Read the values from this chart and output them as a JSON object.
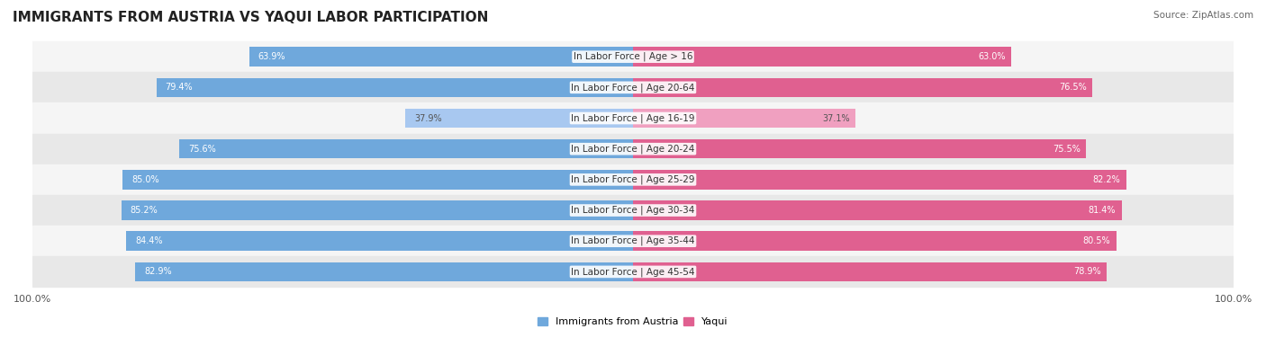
{
  "title": "IMMIGRANTS FROM AUSTRIA VS YAQUI LABOR PARTICIPATION",
  "source": "Source: ZipAtlas.com",
  "categories": [
    "In Labor Force | Age > 16",
    "In Labor Force | Age 20-64",
    "In Labor Force | Age 16-19",
    "In Labor Force | Age 20-24",
    "In Labor Force | Age 25-29",
    "In Labor Force | Age 30-34",
    "In Labor Force | Age 35-44",
    "In Labor Force | Age 45-54"
  ],
  "austria_values": [
    63.9,
    79.4,
    37.9,
    75.6,
    85.0,
    85.2,
    84.4,
    82.9
  ],
  "yaqui_values": [
    63.0,
    76.5,
    37.1,
    75.5,
    82.2,
    81.4,
    80.5,
    78.9
  ],
  "austria_color_dark": "#6fa8dc",
  "austria_color_light": "#a8c8f0",
  "yaqui_color_dark": "#e06090",
  "yaqui_color_light": "#f0a0c0",
  "bar_bg_color": "#f0f0f0",
  "row_bg_even": "#f5f5f5",
  "row_bg_odd": "#e8e8e8",
  "legend_austria_color": "#6fa8dc",
  "legend_yaqui_color": "#e06090",
  "max_value": 100.0,
  "bar_height": 0.35,
  "title_fontsize": 11,
  "label_fontsize": 7.5,
  "value_fontsize": 7,
  "source_fontsize": 7.5
}
